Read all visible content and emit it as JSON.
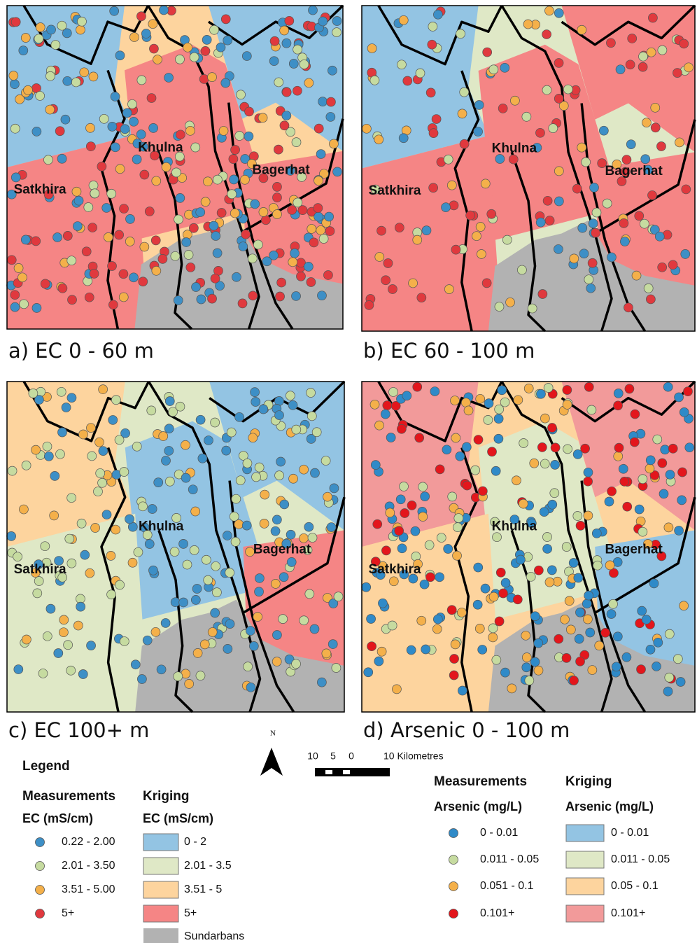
{
  "panels": [
    {
      "label": "a) EC 0 - 60 m",
      "places": [
        "Khulna",
        "Bagerhat",
        "Satkhira"
      ]
    },
    {
      "label": "b) EC 60 - 100 m",
      "places": [
        "Khulna",
        "Bagerhat",
        "Satkhira"
      ]
    },
    {
      "label": "c) EC 100+ m",
      "places": [
        "Khulna",
        "Bagerhat",
        "Satkhira"
      ]
    },
    {
      "label": "d) Arsenic 0 - 100 m",
      "places": [
        "Khulna",
        "Bagerhat",
        "Satkhira"
      ]
    }
  ],
  "north": "N",
  "scale_bar": {
    "labels": [
      "10",
      "5",
      "0",
      "10 Kilometres"
    ]
  },
  "legend_ec": {
    "title": "Legend",
    "measurements": {
      "heading": "Measurements",
      "unit": "EC (mS/cm)",
      "items": [
        {
          "label": "0.22 - 2.00",
          "color": "#3d8fc6"
        },
        {
          "label": "2.01 - 3.50",
          "color": "#c6dba0"
        },
        {
          "label": "3.51 - 5.00",
          "color": "#f4b04a"
        },
        {
          "label": "5+",
          "color": "#e0393e"
        }
      ]
    },
    "kriging": {
      "heading": "Kriging",
      "unit": "EC (mS/cm)",
      "items": [
        {
          "label": "0 - 2",
          "color": "#93c4e3"
        },
        {
          "label": "2.01 - 3.5",
          "color": "#dfe8c6"
        },
        {
          "label": "3.51 - 5",
          "color": "#fdd49e"
        },
        {
          "label": "5+",
          "color": "#f58585"
        },
        {
          "label": "Sundarbans",
          "color": "#b2b2b2"
        }
      ]
    }
  },
  "legend_arsenic": {
    "measurements": {
      "heading": "Measurements",
      "unit": "Arsenic (mg/L)",
      "items": [
        {
          "label": "0 - 0.01",
          "color": "#2f8ac8"
        },
        {
          "label": "0.011 - 0.05",
          "color": "#c6dba0"
        },
        {
          "label": "0.051 - 0.1",
          "color": "#f4b04a"
        },
        {
          "label": "0.101+",
          "color": "#e3161c"
        }
      ]
    },
    "kriging": {
      "heading": "Kriging",
      "unit": "Arsenic (mg/L)",
      "items": [
        {
          "label": "0 - 0.01",
          "color": "#93c4e3"
        },
        {
          "label": "0.011 - 0.05",
          "color": "#dfe8c6"
        },
        {
          "label": "0.05 - 0.1",
          "color": "#fdd49e"
        },
        {
          "label": "0.101+",
          "color": "#f29a9a"
        }
      ]
    }
  }
}
